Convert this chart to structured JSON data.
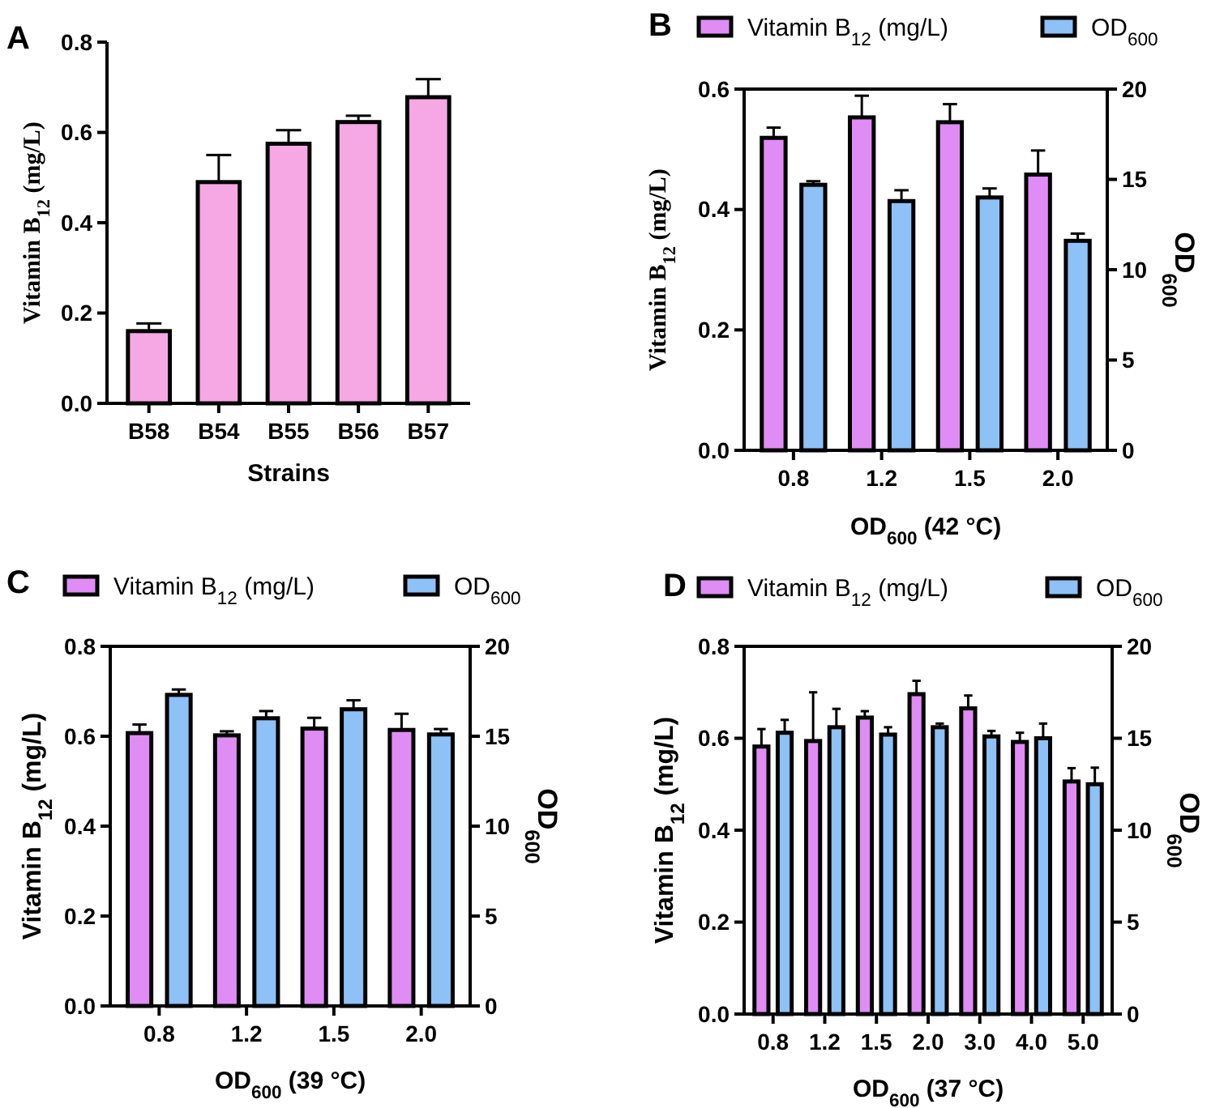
{
  "chart_data": [
    {
      "type": "bar",
      "title": "A",
      "xlabel": "Strains",
      "ylabel": "Vitamin B$_{12}$ (mg/L)",
      "categories": [
        "B58",
        "B54",
        "B55",
        "B56",
        "B57"
      ],
      "values": [
        0.16,
        0.49,
        0.575,
        0.623,
        0.678
      ],
      "errors": [
        0.017,
        0.06,
        0.03,
        0.014,
        0.04
      ],
      "color": "#f5a8e4",
      "ylim": [
        0,
        0.8
      ],
      "yticks": [
        {
          "value": 0,
          "label": "0.0"
        },
        {
          "value": 0.2,
          "label": "0.2"
        },
        {
          "value": 0.4,
          "label": "0.4"
        },
        {
          "value": 0.6,
          "label": "0.6"
        },
        {
          "value": 0.8,
          "label": "0.8"
        }
      ]
    },
    {
      "type": "bar",
      "title": "B",
      "xlabel": "OD$_{600}$ (42 °C)",
      "ylabel": "Vitamin B$_{12}$ (mg/L)",
      "y2label": "OD$_{600}$",
      "categories": [
        "0.8",
        "1.2",
        "1.5",
        "2.0"
      ],
      "legend": "top",
      "series": [
        {
          "name": "Vitamin B$_{12}$ (mg/L)",
          "color": "#e08cf5",
          "values": [
            0.519,
            0.553,
            0.545,
            0.458
          ],
          "errors": [
            0.017,
            0.036,
            0.03,
            0.04
          ]
        },
        {
          "name": "OD$_{600}$",
          "color": "#8ec1f5",
          "axis": "y2",
          "values": [
            14.7,
            13.8,
            14.0,
            11.6
          ],
          "errors": [
            0.2,
            0.6,
            0.5,
            0.4
          ]
        }
      ],
      "ylim": [
        0,
        0.6
      ],
      "yticks": [
        {
          "value": 0,
          "label": "0.0"
        },
        {
          "value": 0.2,
          "label": "0.2"
        },
        {
          "value": 0.4,
          "label": "0.4"
        },
        {
          "value": 0.6,
          "label": "0.6"
        }
      ],
      "y2lim": [
        0,
        20
      ],
      "y2ticks": [
        0,
        5,
        10,
        15,
        20
      ]
    },
    {
      "type": "bar",
      "title": "C",
      "xlabel": "OD$_{600}$ (39 °C)",
      "ylabel": "Vitamin B$_{12}$ (mg/L)",
      "y2label": "OD$_{600}$",
      "categories": [
        "0.8",
        "1.2",
        "1.5",
        "2.0"
      ],
      "legend": "top",
      "series": [
        {
          "name": "Vitamin B$_{12}$ (mg/L)",
          "color": "#e08cf5",
          "values": [
            0.607,
            0.602,
            0.617,
            0.614
          ],
          "errors": [
            0.019,
            0.009,
            0.024,
            0.036
          ]
        },
        {
          "name": "OD$_{600}$",
          "color": "#8ec1f5",
          "axis": "y2",
          "values": [
            17.3,
            16.0,
            16.5,
            15.1
          ],
          "errors": [
            0.3,
            0.4,
            0.5,
            0.3
          ]
        }
      ],
      "ylim": [
        0,
        0.8
      ],
      "yticks": [
        {
          "value": 0,
          "label": "0.0"
        },
        {
          "value": 0.2,
          "label": "0.2"
        },
        {
          "value": 0.4,
          "label": "0.4"
        },
        {
          "value": 0.6,
          "label": "0.6"
        },
        {
          "value": 0.8,
          "label": "0.8"
        }
      ],
      "y2lim": [
        0,
        20
      ],
      "y2ticks": [
        0,
        5,
        10,
        15,
        20
      ]
    },
    {
      "type": "bar",
      "title": "D",
      "xlabel": "OD$_{600}$ (37 °C)",
      "ylabel": "Vitamin B$_{12}$ (mg/L)",
      "y2label": "OD$_{600}$",
      "categories": [
        "0.8",
        "1.2",
        "1.5",
        "2.0",
        "3.0",
        "4.0",
        "5.0"
      ],
      "legend": "top",
      "series": [
        {
          "name": "Vitamin B$_{12}$ (mg/L)",
          "color": "#e08cf5",
          "values": [
            0.582,
            0.594,
            0.645,
            0.696,
            0.665,
            0.592,
            0.506
          ],
          "errors": [
            0.038,
            0.106,
            0.014,
            0.029,
            0.028,
            0.02,
            0.029
          ]
        },
        {
          "name": "OD$_{600}$",
          "color": "#8ec1f5",
          "axis": "y2",
          "values": [
            15.3,
            15.6,
            15.2,
            15.6,
            15.1,
            15.0,
            12.5
          ],
          "errors": [
            0.7,
            1.0,
            0.4,
            0.2,
            0.3,
            0.8,
            0.9
          ]
        }
      ],
      "ylim": [
        0,
        0.8
      ],
      "yticks": [
        {
          "value": 0,
          "label": "0.0"
        },
        {
          "value": 0.2,
          "label": "0.2"
        },
        {
          "value": 0.4,
          "label": "0.4"
        },
        {
          "value": 0.6,
          "label": "0.6"
        },
        {
          "value": 0.8,
          "label": "0.8"
        }
      ],
      "y2lim": [
        0,
        20
      ],
      "y2ticks": [
        0,
        5,
        10,
        15,
        20
      ]
    }
  ]
}
